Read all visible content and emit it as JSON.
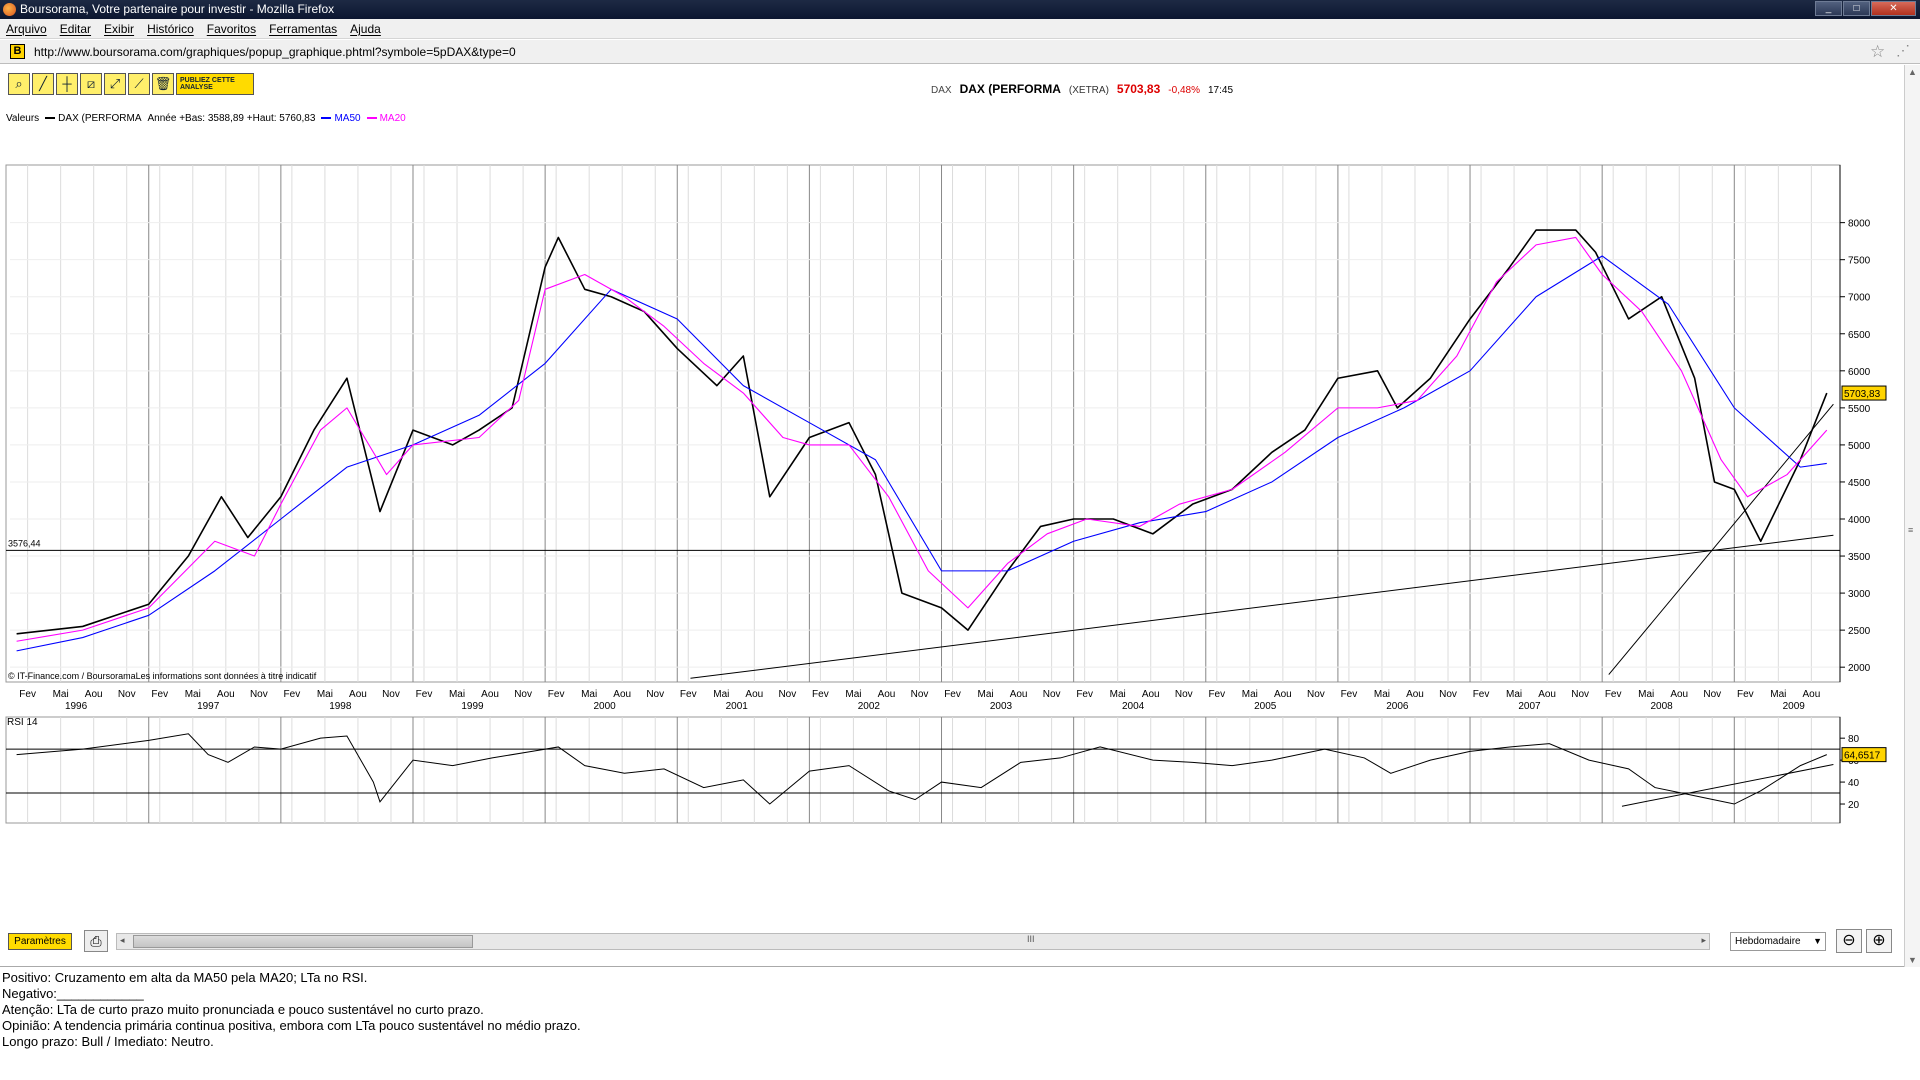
{
  "window": {
    "title": "Boursorama, Votre partenaire pour investir - Mozilla Firefox"
  },
  "menu": [
    "Arquivo",
    "Editar",
    "Exibir",
    "Histórico",
    "Favoritos",
    "Ferramentas",
    "Ajuda"
  ],
  "address": {
    "url": "http://www.boursorama.com/graphiques/popup_graphique.phtml?symbole=5pDAX&type=0"
  },
  "toolbar": {
    "publish_label": "PUBLIEZ CETTE ANALYSE"
  },
  "quote": {
    "symbol": "DAX",
    "name": "DAX (PERFORMA",
    "exchange": "(XETRA)",
    "price": "5703,83",
    "change": "-0,48%",
    "time": "17:45"
  },
  "legend": {
    "valeurs": "Valeurs",
    "series_name": "DAX (PERFORMA",
    "range_text": "Année +Bas: 3588,89 +Haut: 5760,83",
    "ma50": "MA50",
    "ma20": "MA20",
    "colors": {
      "price": "#000000",
      "ma50": "#0000ff",
      "ma20": "#ff00ff"
    }
  },
  "chart_data": [
    {
      "type": "line",
      "title": "",
      "scale": "linear",
      "ylim": [
        1800,
        8400
      ],
      "y_ticks": [
        "8000",
        "7500",
        "7000",
        "6500",
        "6000",
        "5500",
        "5000",
        "4500",
        "4000",
        "3500",
        "3000",
        "2500",
        "2000"
      ],
      "x_month_labels": [
        "Fev",
        "Mai",
        "Aou",
        "Nov",
        "Fev",
        "Mai",
        "Aou",
        "Nov",
        "Fev",
        "Mai",
        "Aou",
        "Nov",
        "Fev",
        "Mai",
        "Aou",
        "Nov",
        "Fev",
        "Mai",
        "Aou",
        "Nov",
        "Fev",
        "Mai",
        "Aou",
        "Nov",
        "Fev",
        "Mai",
        "Aou",
        "Nov",
        "Fev",
        "Mai",
        "Aou",
        "Nov",
        "Fev",
        "Mai",
        "Aou",
        "Nov",
        "Fev",
        "Mai",
        "Aou",
        "Nov",
        "Fev",
        "Mai",
        "Aou",
        "Nov",
        "Fev",
        "Mai",
        "Aou",
        "Nov",
        "Fev",
        "Mai",
        "Aou",
        "Nov",
        "Fev",
        "Mai",
        "Aou",
        "Nov",
        "Fev",
        "Mai",
        "Aou"
      ],
      "x_year_labels": [
        "1996",
        "1997",
        "1998",
        "1999",
        "2000",
        "2001",
        "2002",
        "2003",
        "2004",
        "2005",
        "2006",
        "2007",
        "2008",
        "2009"
      ],
      "last_price_label": "5703,83",
      "horizontal_line": {
        "value": 3576.44,
        "label": "3576,44"
      },
      "copyright": "© IT-Finance.com / BoursoramaLes informations sont données à titre indicatif",
      "series": [
        {
          "name": "DAX (PERFORMA",
          "x": [
            1996.0,
            1996.5,
            1997.0,
            1997.3,
            1997.55,
            1997.75,
            1998.0,
            1998.25,
            1998.5,
            1998.75,
            1999.0,
            1999.3,
            1999.5,
            1999.75,
            2000.0,
            2000.1,
            2000.3,
            2000.5,
            2000.75,
            2001.0,
            2001.3,
            2001.5,
            2001.7,
            2002.0,
            2002.3,
            2002.5,
            2002.7,
            2003.0,
            2003.2,
            2003.5,
            2003.75,
            2004.0,
            2004.3,
            2004.6,
            2004.9,
            2005.2,
            2005.5,
            2005.75,
            2006.0,
            2006.3,
            2006.45,
            2006.7,
            2007.0,
            2007.3,
            2007.5,
            2007.8,
            2007.95,
            2008.2,
            2008.45,
            2008.7,
            2008.85,
            2009.0,
            2009.2,
            2009.5,
            2009.7
          ],
          "values": [
            2450,
            2550,
            2850,
            3500,
            4300,
            3750,
            4300,
            5200,
            5900,
            4100,
            5200,
            5000,
            5200,
            5500,
            7400,
            7800,
            7100,
            7000,
            6800,
            6300,
            5800,
            6200,
            4300,
            5100,
            5300,
            4600,
            3000,
            2800,
            2500,
            3300,
            3900,
            4000,
            4000,
            3800,
            4200,
            4400,
            4900,
            5200,
            5900,
            6000,
            5500,
            5900,
            6700,
            7400,
            7900,
            7900,
            7600,
            6700,
            7000,
            5900,
            4500,
            4400,
            3700,
            4800,
            5700
          ]
        },
        {
          "name": "MA50",
          "x": [
            1996.0,
            1996.5,
            1997.0,
            1997.5,
            1998.0,
            1998.5,
            1999.0,
            1999.5,
            2000.0,
            2000.5,
            2001.0,
            2001.5,
            2002.0,
            2002.5,
            2003.0,
            2003.5,
            2004.0,
            2004.5,
            2005.0,
            2005.5,
            2006.0,
            2006.5,
            2007.0,
            2007.5,
            2008.0,
            2008.5,
            2009.0,
            2009.5,
            2009.7
          ],
          "values": [
            2220,
            2400,
            2700,
            3300,
            4000,
            4700,
            5000,
            5400,
            6100,
            7100,
            6700,
            5800,
            5300,
            4800,
            3300,
            3300,
            3700,
            3950,
            4100,
            4500,
            5100,
            5500,
            6000,
            7000,
            7550,
            6900,
            5500,
            4700,
            4750
          ]
        },
        {
          "name": "MA20",
          "x": [
            1996.0,
            1996.5,
            1997.0,
            1997.5,
            1997.8,
            1998.0,
            1998.3,
            1998.5,
            1998.8,
            1999.0,
            1999.5,
            1999.8,
            2000.0,
            2000.3,
            2000.6,
            2000.9,
            2001.2,
            2001.5,
            2001.8,
            2002.0,
            2002.3,
            2002.6,
            2002.9,
            2003.2,
            2003.5,
            2003.8,
            2004.1,
            2004.5,
            2004.8,
            2005.2,
            2005.6,
            2006.0,
            2006.3,
            2006.6,
            2006.9,
            2007.2,
            2007.5,
            2007.8,
            2008.0,
            2008.3,
            2008.6,
            2008.9,
            2009.1,
            2009.4,
            2009.7
          ],
          "values": [
            2350,
            2500,
            2800,
            3700,
            3500,
            4200,
            5200,
            5500,
            4600,
            5000,
            5100,
            5600,
            7100,
            7300,
            7000,
            6600,
            6100,
            5700,
            5100,
            5000,
            5000,
            4300,
            3300,
            2800,
            3400,
            3800,
            4000,
            3900,
            4200,
            4400,
            4900,
            5500,
            5500,
            5600,
            6200,
            7200,
            7700,
            7800,
            7300,
            6800,
            6000,
            4800,
            4300,
            4600,
            5200
          ]
        }
      ],
      "trendlines": [
        {
          "from": [
            2001.1,
            1850
          ],
          "to": [
            2009.75,
            3780
          ]
        },
        {
          "from": [
            2008.05,
            1900
          ],
          "to": [
            2009.75,
            5550
          ]
        }
      ]
    },
    {
      "type": "line",
      "title": "RSI 14",
      "ylim": [
        10,
        92
      ],
      "y_ticks": [
        "80",
        "60",
        "40",
        "20"
      ],
      "horizontal_lines": [
        70,
        30
      ],
      "last_value_label": "64,6517",
      "series": [
        {
          "name": "RSI 14",
          "x": [
            1996.0,
            1996.5,
            1997.0,
            1997.3,
            1997.45,
            1997.6,
            1997.8,
            1998.0,
            1998.3,
            1998.5,
            1998.7,
            1998.75,
            1999.0,
            1999.3,
            1999.6,
            1999.9,
            2000.1,
            2000.3,
            2000.6,
            2000.9,
            2001.2,
            2001.5,
            2001.7,
            2002.0,
            2002.3,
            2002.6,
            2002.8,
            2003.0,
            2003.3,
            2003.6,
            2003.9,
            2004.2,
            2004.6,
            2004.9,
            2005.2,
            2005.5,
            2005.9,
            2006.2,
            2006.4,
            2006.7,
            2007.0,
            2007.3,
            2007.6,
            2007.9,
            2008.2,
            2008.4,
            2008.6,
            2008.8,
            2009.0,
            2009.2,
            2009.5,
            2009.7
          ],
          "values": [
            65,
            70,
            78,
            84,
            65,
            58,
            72,
            70,
            80,
            82,
            40,
            22,
            60,
            55,
            62,
            68,
            72,
            55,
            48,
            52,
            35,
            42,
            20,
            50,
            55,
            32,
            24,
            40,
            35,
            58,
            62,
            72,
            60,
            58,
            55,
            60,
            70,
            62,
            48,
            60,
            68,
            72,
            75,
            60,
            52,
            35,
            30,
            25,
            20,
            32,
            55,
            65
          ]
        }
      ],
      "trendlines": [
        {
          "from": [
            2008.15,
            18
          ],
          "to": [
            2009.75,
            56
          ]
        }
      ]
    }
  ],
  "bottom_bar": {
    "params_label": "Paramètres",
    "period": "Hebdomadaire"
  },
  "notes": [
    "Positivo: Cruzamento em alta da MA50 pela MA20; LTa no RSI.",
    "Negativo:____________",
    "Atenção: LTa de curto prazo muito pronunciada e pouco sustentável no curto prazo.",
    "",
    "Opinião: A tendencia primária continua positiva, embora com LTa pouco sustentável no médio prazo.",
    "Longo prazo: Bull / Imediato: Neutro."
  ]
}
